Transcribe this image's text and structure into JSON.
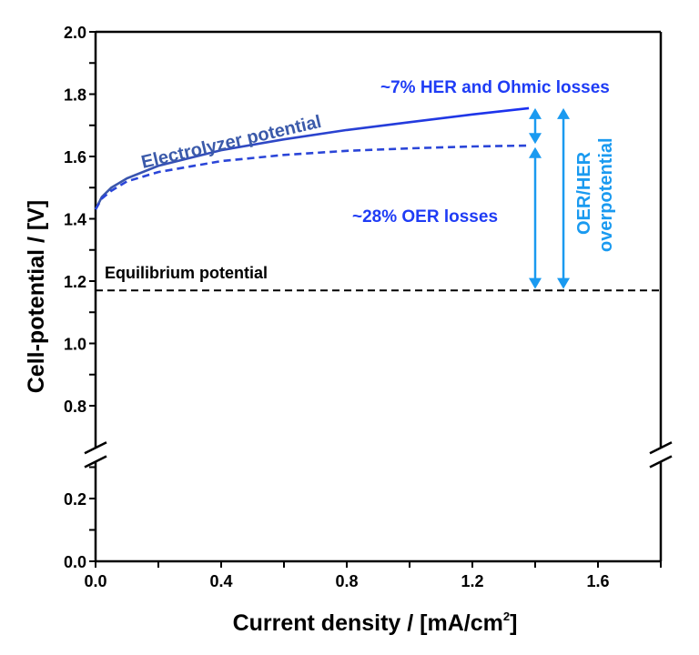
{
  "chart_data": {
    "type": "line",
    "xlabel": "Current density / [mA/cm",
    "xlabel_sup": "2",
    "xlabel_end": "]",
    "ylabel": "Cell-potential / [V]",
    "xlim": [
      0,
      1.8
    ],
    "ylim": [
      0,
      2.0
    ],
    "y_axis_break": [
      0.3,
      0.7
    ],
    "grid": false,
    "x_ticks": [
      "0.0",
      "0.4",
      "0.8",
      "1.2",
      "1.6"
    ],
    "y_ticks_upper": [
      "0.8",
      "1.0",
      "1.2",
      "1.4",
      "1.6",
      "1.8",
      "2.0"
    ],
    "y_ticks_lower": [
      "0.0",
      "0.2"
    ],
    "series": [
      {
        "name": "Electrolyzer potential",
        "style": "solid",
        "color": "#1f35e8",
        "x": [
          0,
          0.02,
          0.05,
          0.1,
          0.2,
          0.4,
          0.6,
          0.8,
          1.0,
          1.2,
          1.38
        ],
        "y": [
          1.43,
          1.47,
          1.5,
          1.53,
          1.57,
          1.62,
          1.655,
          1.685,
          1.71,
          1.735,
          1.755
        ]
      },
      {
        "style": "dashed",
        "color": "#2a45d8",
        "x": [
          0,
          0.02,
          0.05,
          0.1,
          0.2,
          0.4,
          0.6,
          0.8,
          1.0,
          1.2,
          1.38
        ],
        "y": [
          1.43,
          1.465,
          1.49,
          1.52,
          1.55,
          1.585,
          1.605,
          1.618,
          1.626,
          1.632,
          1.635
        ]
      },
      {
        "name": "Equilibrium potential",
        "style": "dashed",
        "color": "#000000",
        "x": [
          0,
          1.8
        ],
        "y": [
          1.17,
          1.17
        ]
      }
    ],
    "annotations": {
      "her_ohmic": "~7% HER and Ohmic losses",
      "oer": "~28% OER losses",
      "overpotential_line1": "OER/HER",
      "overpotential_line2": "overpotential",
      "electrolyzer": "Electrolyzer potential",
      "equilibrium": "Equilibrium potential"
    },
    "colors": {
      "arrow": "#1a9af0",
      "annotation_text": "#1f3cf5",
      "electrolyzer_label": "#3b5aaa"
    }
  }
}
